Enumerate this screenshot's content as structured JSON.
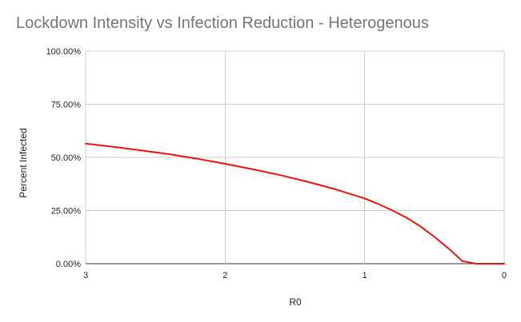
{
  "chart_data": {
    "type": "line",
    "title": "Lockdown Intensity vs Infection Reduction - Heterogenous",
    "xlabel": "R0",
    "ylabel": "Percent Infected",
    "xlim": [
      3,
      0
    ],
    "ylim": [
      0,
      100
    ],
    "x_reversed": true,
    "x_ticks": [
      {
        "value": 3,
        "label": "3"
      },
      {
        "value": 2,
        "label": "2"
      },
      {
        "value": 1,
        "label": "1"
      },
      {
        "value": 0,
        "label": "0"
      }
    ],
    "y_ticks": [
      {
        "value": 0,
        "label": "0.00%"
      },
      {
        "value": 25,
        "label": "25.00%"
      },
      {
        "value": 50,
        "label": "50.00%"
      },
      {
        "value": 75,
        "label": "75.00%"
      },
      {
        "value": 100,
        "label": "100.00%"
      }
    ],
    "grid": true,
    "legend": "none",
    "series": [
      {
        "color": "#e8140c",
        "points": [
          {
            "x": 3.0,
            "y": 56.5
          },
          {
            "x": 2.8,
            "y": 55.0
          },
          {
            "x": 2.6,
            "y": 53.3
          },
          {
            "x": 2.4,
            "y": 51.5
          },
          {
            "x": 2.2,
            "y": 49.4
          },
          {
            "x": 2.0,
            "y": 47.0
          },
          {
            "x": 1.8,
            "y": 44.4
          },
          {
            "x": 1.6,
            "y": 41.6
          },
          {
            "x": 1.4,
            "y": 38.4
          },
          {
            "x": 1.2,
            "y": 34.8
          },
          {
            "x": 1.0,
            "y": 30.7
          },
          {
            "x": 0.9,
            "y": 28.0
          },
          {
            "x": 0.8,
            "y": 25.0
          },
          {
            "x": 0.7,
            "y": 21.6
          },
          {
            "x": 0.6,
            "y": 17.5
          },
          {
            "x": 0.5,
            "y": 12.6
          },
          {
            "x": 0.4,
            "y": 7.2
          },
          {
            "x": 0.3,
            "y": 1.2
          },
          {
            "x": 0.2,
            "y": 0.0
          },
          {
            "x": 0.1,
            "y": 0.0
          },
          {
            "x": 0.0,
            "y": 0.0
          }
        ]
      }
    ]
  }
}
